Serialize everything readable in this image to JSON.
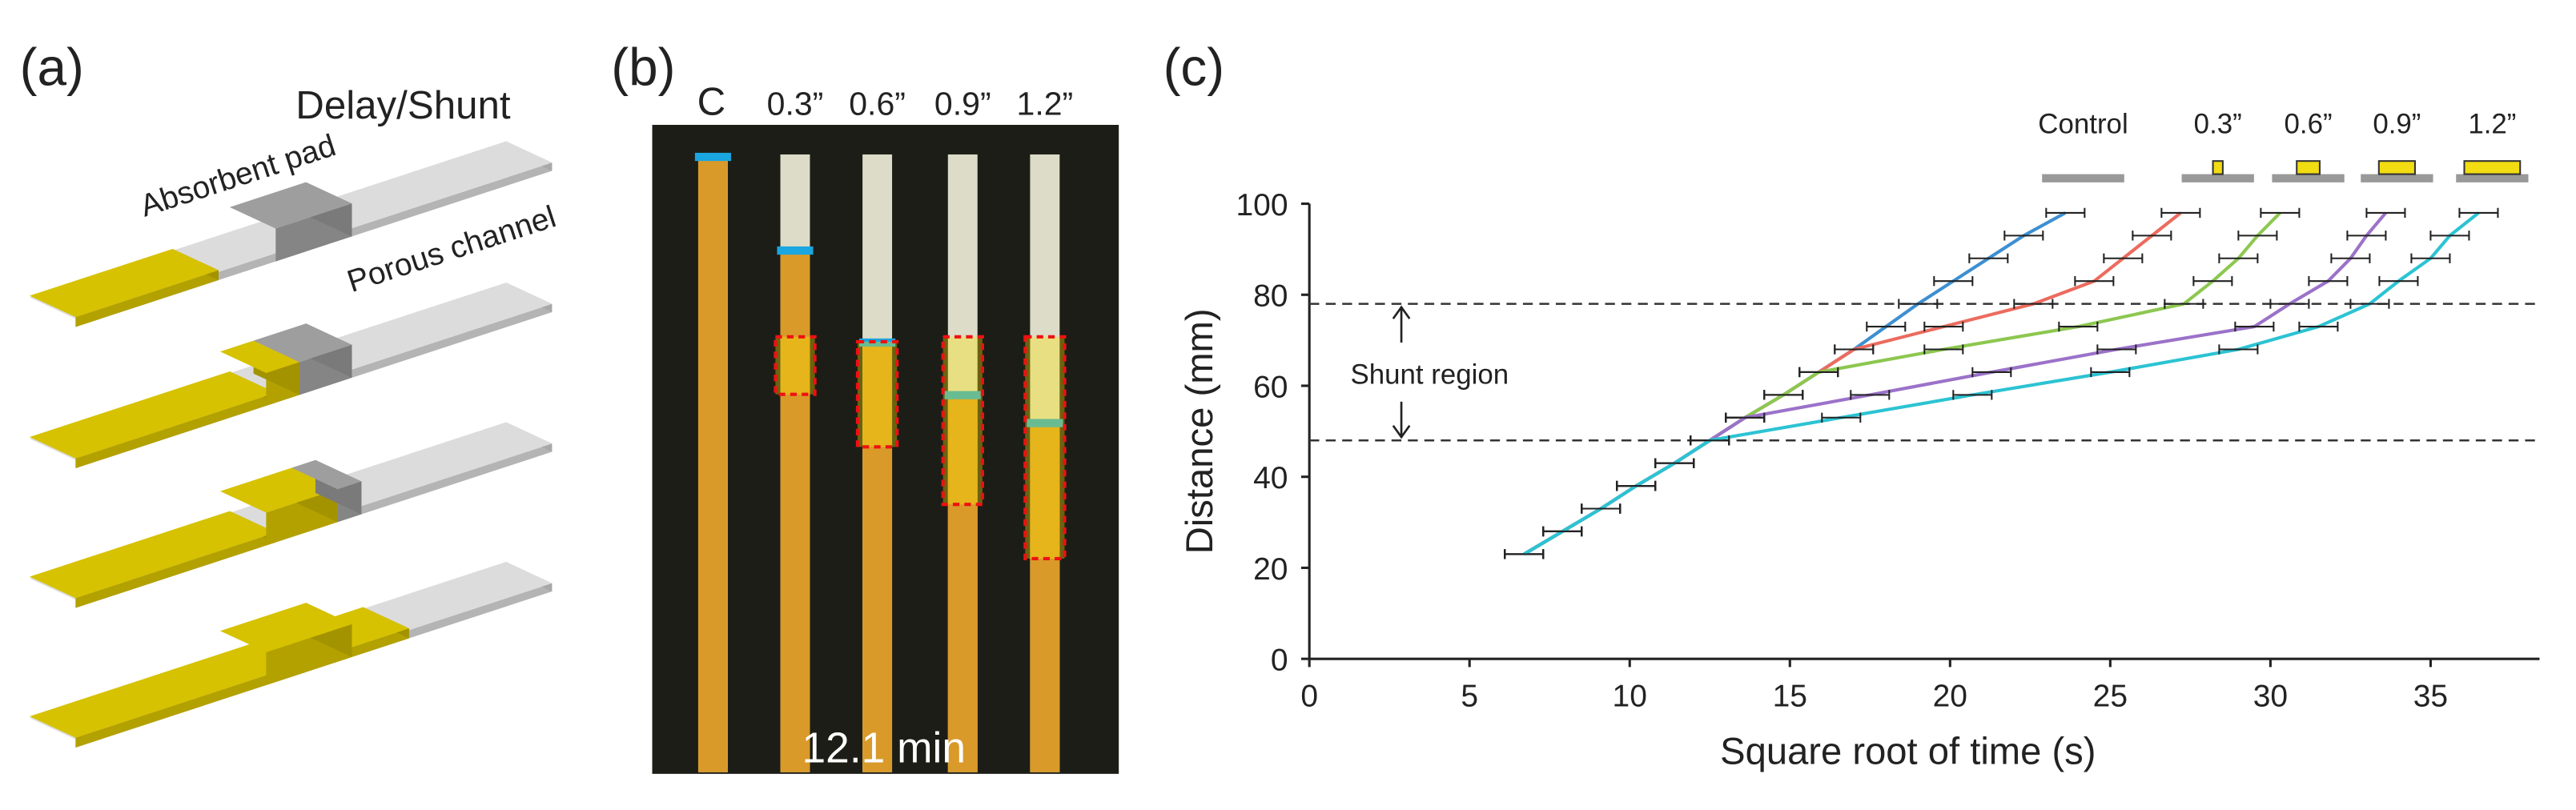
{
  "panel_a": {
    "label": "(a)",
    "title": "Delay/Shunt",
    "pad_label": "Absorbent pad",
    "channel_label": "Porous channel"
  },
  "panel_b": {
    "label": "(b)",
    "strip_labels": [
      "C",
      "0.3”",
      "0.6”",
      "0.9”",
      "1.2”"
    ],
    "time_label": "12.1 min"
  },
  "panel_c_label": "(c)",
  "chart_data": {
    "type": "line",
    "xlabel": "Square root of time (s)",
    "ylabel": "Distance (mm)",
    "xlim": [
      0,
      38.4
    ],
    "ylim": [
      0,
      100
    ],
    "xticks": [
      0,
      5,
      10,
      15,
      20,
      25,
      30,
      35
    ],
    "yticks": [
      0,
      20,
      40,
      60,
      80,
      100
    ],
    "annotation": "Shunt region",
    "hlines": [
      48,
      78
    ],
    "series": [
      {
        "name": "Control",
        "color": "#3d8fd1",
        "xerr": 0.6,
        "x": [
          6.7,
          7.9,
          9.1,
          10.2,
          11.4,
          12.5,
          13.6,
          14.8,
          15.9,
          17,
          18,
          19,
          20.1,
          21.2,
          22.3,
          23.6
        ],
        "values": [
          23,
          28,
          33,
          38,
          43,
          48,
          53,
          58,
          63,
          68,
          73,
          78,
          83,
          88,
          93,
          98
        ]
      },
      {
        "name": "0.3”",
        "color": "#ec6b5e",
        "xerr": 0.6,
        "x": [
          6.7,
          7.9,
          9.1,
          10.2,
          11.4,
          12.5,
          13.6,
          14.8,
          15.9,
          17,
          19.8,
          22.6,
          24.5,
          25.4,
          26.3,
          27.2
        ],
        "values": [
          23,
          28,
          33,
          38,
          43,
          48,
          53,
          58,
          63,
          68,
          73,
          78,
          83,
          88,
          93,
          98
        ]
      },
      {
        "name": "0.6”",
        "color": "#8dc750",
        "xerr": 0.6,
        "x": [
          6.7,
          7.9,
          9.1,
          10.2,
          11.4,
          12.5,
          13.6,
          14.8,
          15.9,
          19.8,
          24,
          27.3,
          28.2,
          29,
          29.6,
          30.3
        ],
        "values": [
          23,
          28,
          33,
          38,
          43,
          48,
          53,
          58,
          63,
          68,
          73,
          78,
          83,
          88,
          93,
          98
        ]
      },
      {
        "name": "0.9”",
        "color": "#9b72c9",
        "xerr": 0.6,
        "x": [
          6.7,
          7.9,
          9.1,
          10.2,
          11.4,
          12.5,
          13.6,
          17.5,
          21.3,
          25.2,
          29.5,
          30.6,
          31.8,
          32.5,
          33,
          33.6
        ],
        "values": [
          23,
          28,
          33,
          38,
          43,
          48,
          53,
          58,
          63,
          68,
          73,
          78,
          83,
          88,
          93,
          98
        ]
      },
      {
        "name": "1.2”",
        "color": "#2cc3d3",
        "xerr": 0.6,
        "x": [
          6.7,
          7.9,
          9.1,
          10.2,
          11.4,
          12.5,
          16.6,
          20.7,
          25,
          29,
          31.5,
          33.1,
          34,
          35,
          35.6,
          36.5
        ],
        "values": [
          23,
          28,
          33,
          38,
          43,
          48,
          53,
          58,
          63,
          68,
          73,
          78,
          83,
          88,
          93,
          98
        ]
      }
    ]
  }
}
